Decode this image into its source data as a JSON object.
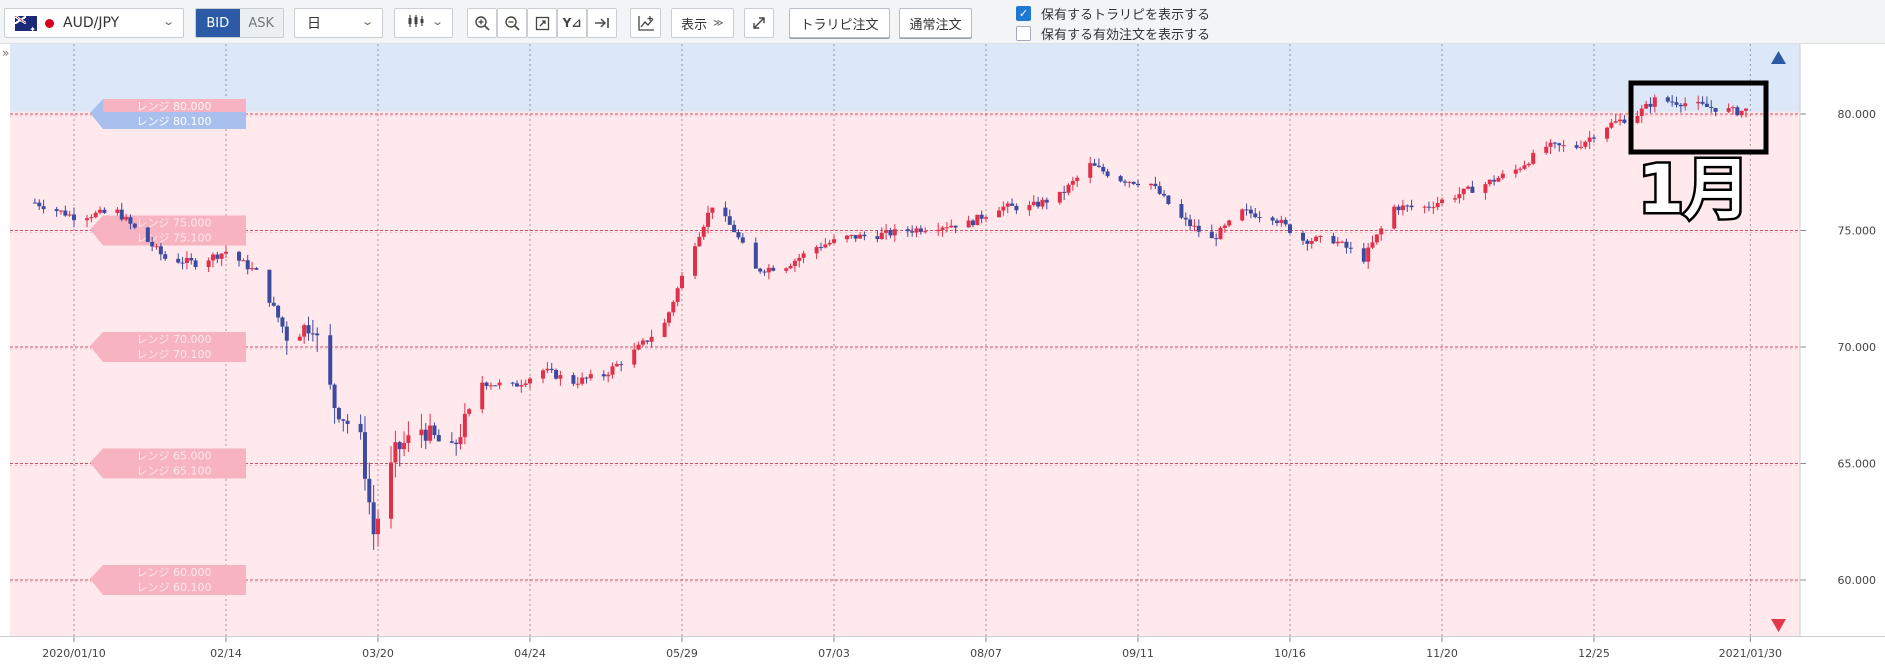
{
  "toolbar": {
    "pair": "AUD/JPY",
    "bid_label": "BID",
    "ask_label": "ASK",
    "period": "日",
    "display_label": "表示",
    "trap_order_label": "トラリピ注文",
    "normal_order_label": "通常注文",
    "chk_show_traps": "保有するトラリピを表示する",
    "chk_show_orders": "保有する有効注文を表示する",
    "chk_show_traps_checked": true,
    "chk_show_orders_checked": false
  },
  "icons": [
    "flag-australia-icon",
    "jp-dot-icon",
    "chevron-down-icon",
    "candlestick-icon",
    "zoom-in-icon",
    "zoom-out-icon",
    "fit-icon",
    "y-axis-icon",
    "scroll-end-icon",
    "indicator-icon",
    "expand-icon",
    "check-icon",
    "collapse-icon",
    "scroll-up-triangle-icon",
    "scroll-down-triangle-icon"
  ],
  "annotation": {
    "label": "1月"
  },
  "colors": {
    "up": "#e0304a",
    "down": "#3c4aa0",
    "sell_zone": "#dce8f8",
    "buy_zone": "#ffe9ec",
    "bid_active": "#2d5aa6"
  },
  "chart_data": {
    "type": "candlestick",
    "title": "",
    "instrument": "AUD/JPY",
    "timeframe": "日",
    "x_ticks": [
      "2020/01/10",
      "02/14",
      "03/20",
      "04/24",
      "05/29",
      "07/03",
      "08/07",
      "09/11",
      "10/16",
      "11/20",
      "12/25",
      "2021/01/30"
    ],
    "y_ticks": [
      "80.000",
      "75.000",
      "70.000",
      "65.000",
      "60.000"
    ],
    "ylim": [
      57.5,
      82.5
    ],
    "grid": true,
    "sell_zone_above": 80.1,
    "range_labels": [
      {
        "a": "レンジ 80.000",
        "b": "レンジ 80.100",
        "active": true
      },
      {
        "a": "レンジ 75.000",
        "b": "レンジ 75.100",
        "active": false
      },
      {
        "a": "レンジ 70.000",
        "b": "レンジ 70.100",
        "active": false
      },
      {
        "a": "レンジ 65.000",
        "b": "レンジ 65.100",
        "active": false
      },
      {
        "a": "レンジ 60.000",
        "b": "レンジ 60.100",
        "active": false
      }
    ],
    "close_path": [
      [
        "2020/01/01",
        76.2
      ],
      [
        "2020/01/10",
        75.6
      ],
      [
        "2020/01/20",
        75.8
      ],
      [
        "2020/01/31",
        73.8
      ],
      [
        "2020/02/07",
        73.6
      ],
      [
        "2020/02/14",
        74.1
      ],
      [
        "2020/02/21",
        73.2
      ],
      [
        "2020/02/28",
        70.5
      ],
      [
        "2020/03/05",
        71.0
      ],
      [
        "2020/03/10",
        67.5
      ],
      [
        "2020/03/16",
        66.0
      ],
      [
        "2020/03/19",
        62.0
      ],
      [
        "2020/03/24",
        65.5
      ],
      [
        "2020/03/30",
        66.5
      ],
      [
        "2020/04/06",
        65.5
      ],
      [
        "2020/04/13",
        68.5
      ],
      [
        "2020/04/20",
        68.3
      ],
      [
        "2020/04/27",
        69.0
      ],
      [
        "2020/05/04",
        68.5
      ],
      [
        "2020/05/11",
        68.8
      ],
      [
        "2020/05/18",
        69.8
      ],
      [
        "2020/05/25",
        71.0
      ],
      [
        "2020/06/01",
        74.5
      ],
      [
        "2020/06/05",
        76.1
      ],
      [
        "2020/06/10",
        75.0
      ],
      [
        "2020/06/15",
        73.3
      ],
      [
        "2020/06/22",
        73.5
      ],
      [
        "2020/06/29",
        74.3
      ],
      [
        "2020/07/06",
        74.7
      ],
      [
        "2020/07/13",
        74.8
      ],
      [
        "2020/07/20",
        75.0
      ],
      [
        "2020/07/27",
        75.2
      ],
      [
        "2020/08/03",
        75.3
      ],
      [
        "2020/08/10",
        76.0
      ],
      [
        "2020/08/17",
        76.0
      ],
      [
        "2020/08/24",
        76.5
      ],
      [
        "2020/08/31",
        77.8
      ],
      [
        "2020/09/07",
        77.2
      ],
      [
        "2020/09/14",
        77.0
      ],
      [
        "2020/09/21",
        75.5
      ],
      [
        "2020/09/28",
        74.6
      ],
      [
        "2020/10/05",
        75.8
      ],
      [
        "2020/10/12",
        75.6
      ],
      [
        "2020/10/19",
        74.6
      ],
      [
        "2020/10/26",
        74.6
      ],
      [
        "2020/11/02",
        73.8
      ],
      [
        "2020/11/09",
        76.0
      ],
      [
        "2020/11/16",
        76.0
      ],
      [
        "2020/11/23",
        76.5
      ],
      [
        "2020/11/30",
        77.0
      ],
      [
        "2020/12/07",
        77.6
      ],
      [
        "2020/12/14",
        78.6
      ],
      [
        "2020/12/21",
        78.6
      ],
      [
        "2020/12/28",
        79.5
      ],
      [
        "2021/01/04",
        80.0
      ],
      [
        "2021/01/08",
        80.6
      ],
      [
        "2021/01/14",
        80.5
      ],
      [
        "2021/01/20",
        80.3
      ],
      [
        "2021/01/27",
        80.1
      ],
      [
        "2021/01/30",
        80.2
      ]
    ]
  }
}
